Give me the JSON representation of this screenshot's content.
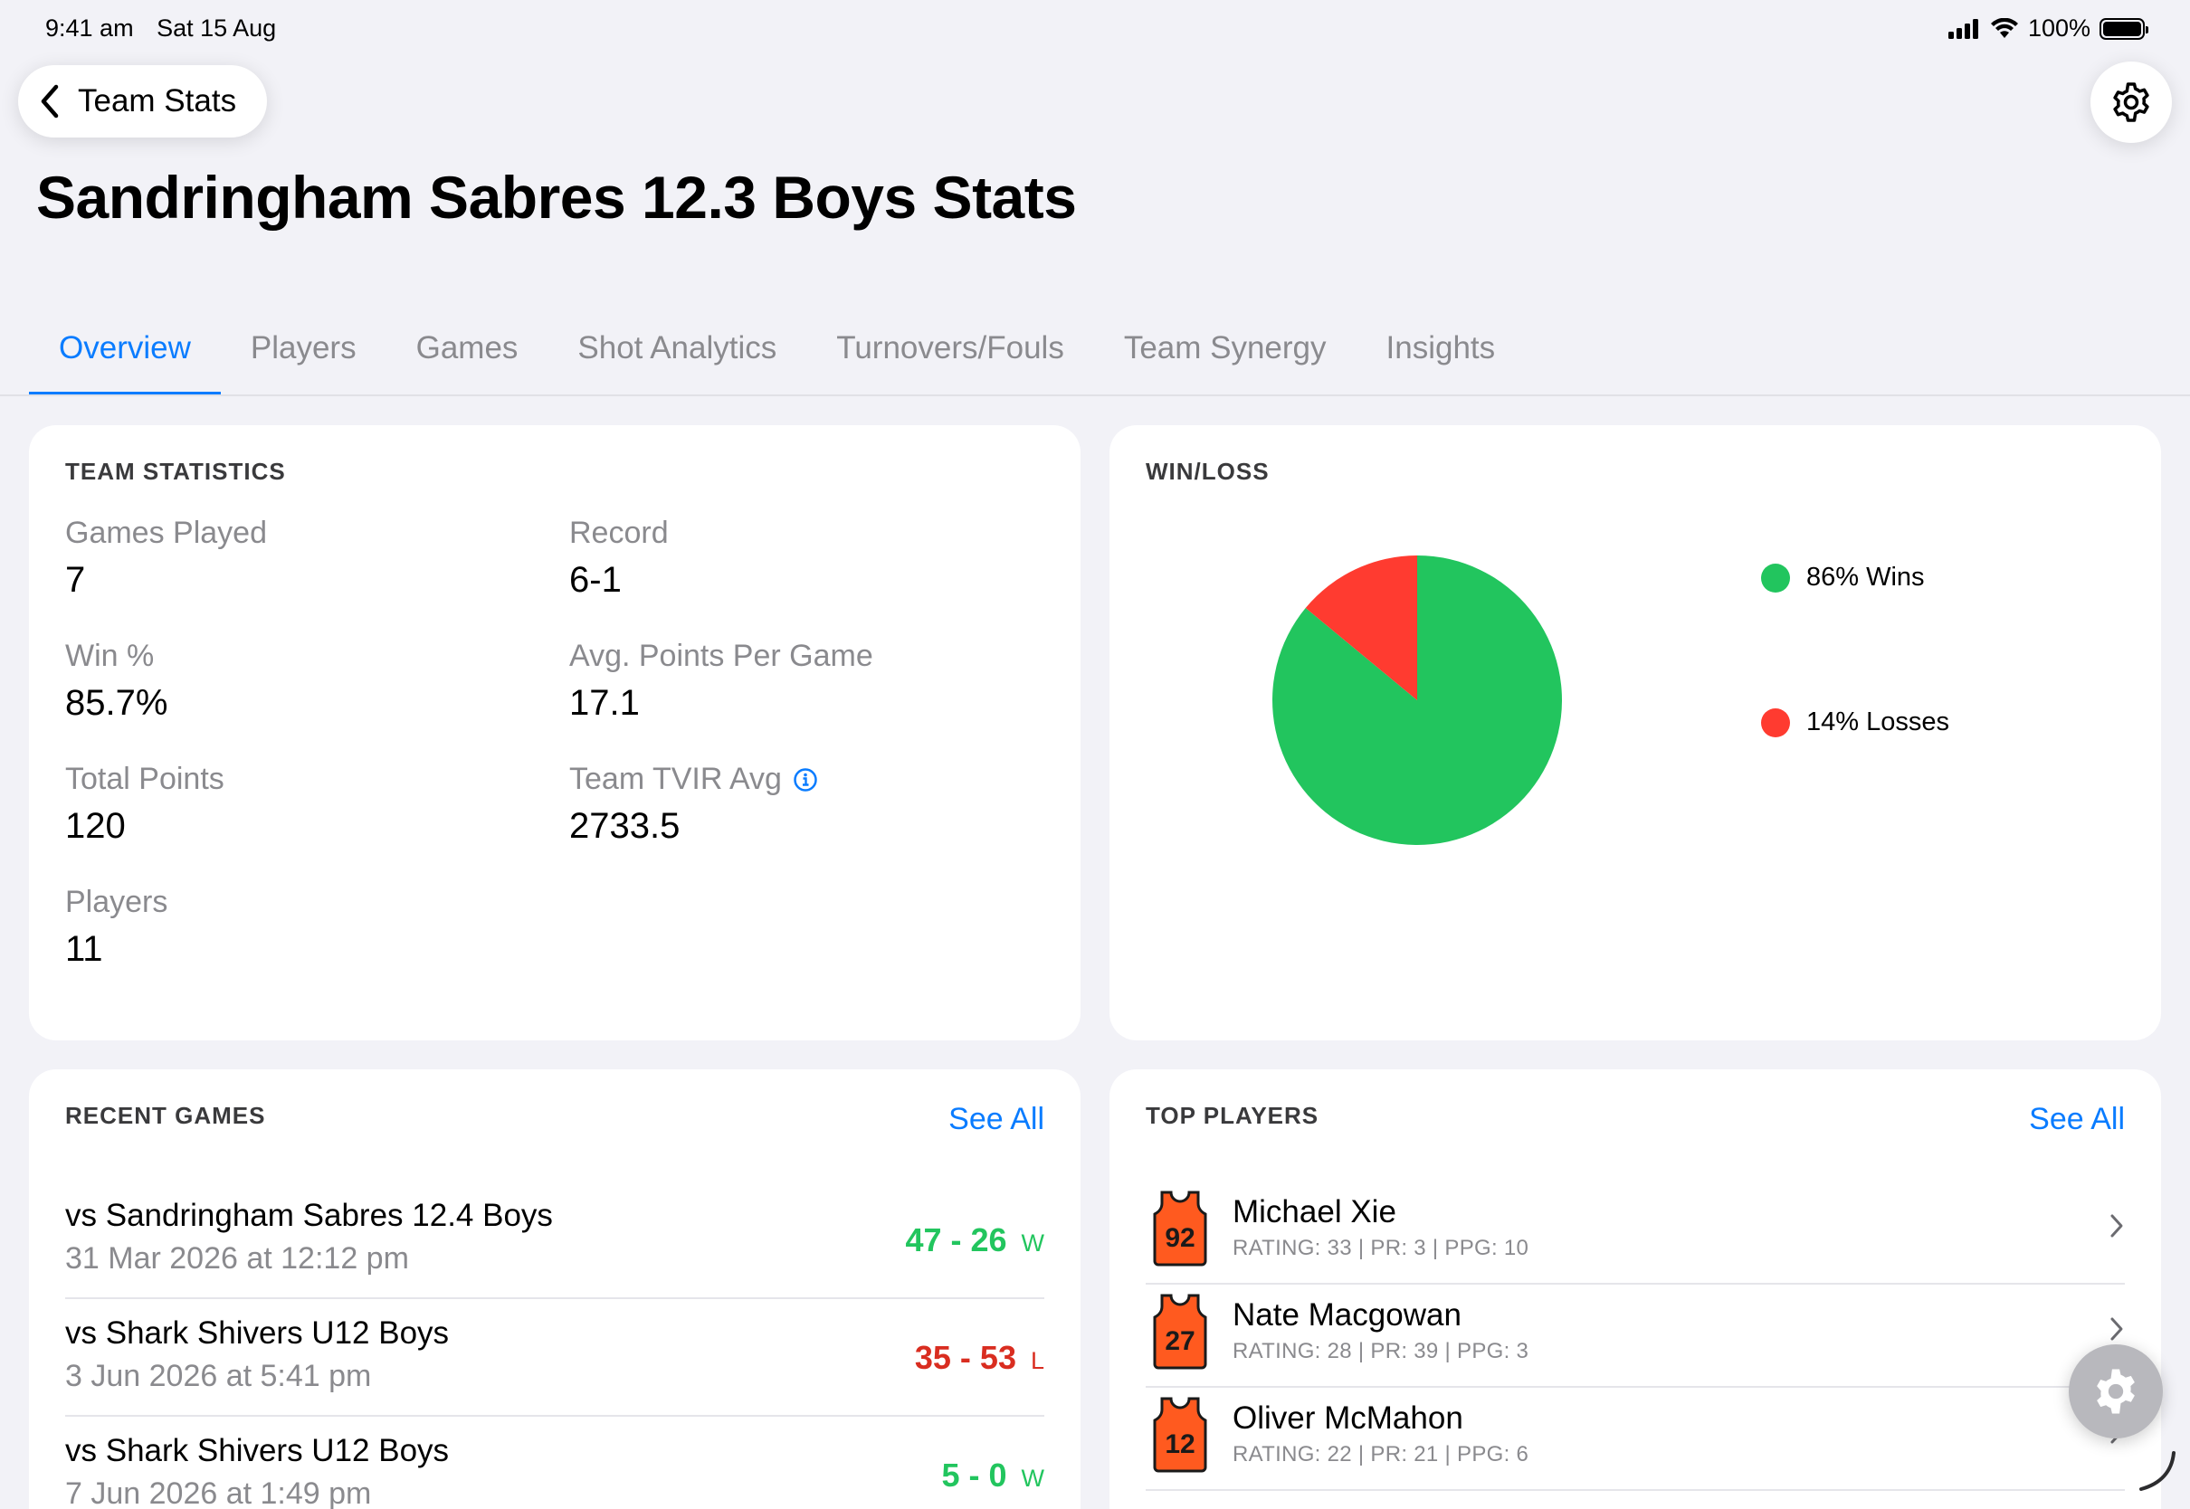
{
  "status_bar": {
    "time": "9:41 am",
    "date": "Sat 15 Aug",
    "battery": "100%"
  },
  "nav": {
    "back_label": "Team Stats"
  },
  "page_title": "Sandringham Sabres 12.3 Boys Stats",
  "tabs": [
    {
      "label": "Overview",
      "active": true
    },
    {
      "label": "Players"
    },
    {
      "label": "Games"
    },
    {
      "label": "Shot Analytics"
    },
    {
      "label": "Turnovers/Fouls"
    },
    {
      "label": "Team Synergy"
    },
    {
      "label": "Insights"
    }
  ],
  "team_statistics": {
    "title": "TEAM STATISTICS",
    "items": [
      {
        "label": "Games Played",
        "value": "7"
      },
      {
        "label": "Record",
        "value": "6-1"
      },
      {
        "label": "Win %",
        "value": "85.7%"
      },
      {
        "label": "Avg. Points Per Game",
        "value": "17.1"
      },
      {
        "label": "Total Points",
        "value": "120"
      },
      {
        "label": "Team TVIR Avg",
        "value": "2733.5",
        "info_icon": "info-circle-icon"
      },
      {
        "label": "Players",
        "value": "11"
      }
    ]
  },
  "win_loss": {
    "title": "WIN/LOSS",
    "wins_label": "86% Wins",
    "losses_label": "14% Losses",
    "colors": {
      "wins": "#22c55e",
      "losses": "#ff3b30"
    }
  },
  "chart_data": {
    "type": "pie",
    "categories": [
      "Wins",
      "Losses"
    ],
    "values": [
      86,
      14
    ]
  },
  "recent_games": {
    "title": "RECENT GAMES",
    "see_all": "See All",
    "games": [
      {
        "opponent": "vs Sandringham Sabres 12.4 Boys",
        "date": "31 Mar 2026 at 12:12 pm",
        "score": "47 - 26",
        "result": "W"
      },
      {
        "opponent": "vs Shark Shivers U12 Boys",
        "date": "3 Jun 2026 at 5:41 pm",
        "score": "35 - 53",
        "result": "L"
      },
      {
        "opponent": "vs Shark Shivers U12 Boys",
        "date": "7 Jun 2026 at 1:49 pm",
        "score": "5 - 0",
        "result": "W"
      }
    ]
  },
  "top_players": {
    "title": "TOP PLAYERS",
    "see_all": "See All",
    "players": [
      {
        "number": "92",
        "name": "Michael Xie",
        "meta": "RATING: 33 | PR: 3 | PPG: 10"
      },
      {
        "number": "27",
        "name": "Nate Macgowan",
        "meta": "RATING: 28 | PR: 39 | PPG: 3"
      },
      {
        "number": "12",
        "name": "Oliver McMahon",
        "meta": "RATING: 22 | PR: 21 | PPG: 6"
      }
    ]
  },
  "accent": "#0a7cff",
  "win_color": "#22c55e",
  "loss_color": "#d92d20"
}
